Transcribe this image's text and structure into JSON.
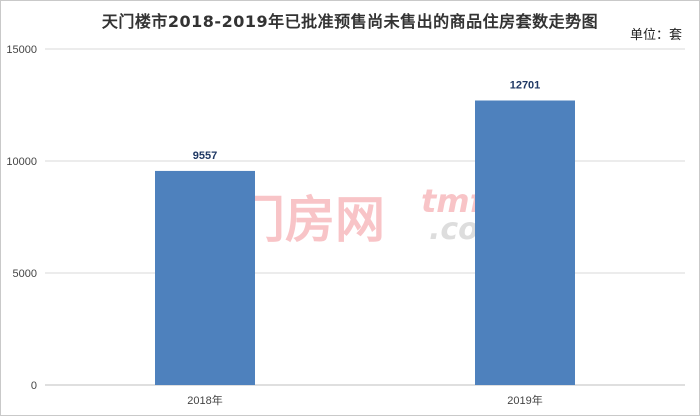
{
  "title": "天门楼市2018-2019年已批准预售尚未售出的商品住房套数走势图",
  "unit_label": "单位：套",
  "watermark": {
    "cn": "天门房网",
    "en": "tmfang",
    "com": ".com"
  },
  "colors": {
    "bar": "#4e81bd",
    "grid": "#d9d9d9",
    "data_label": "#1f3864"
  },
  "chart_data": {
    "type": "bar",
    "categories": [
      "2018年",
      "2019年"
    ],
    "values": [
      9557,
      12701
    ],
    "title": "天门楼市2018-2019年已批准预售尚未售出的商品住房套数走势图",
    "xlabel": "",
    "ylabel": "",
    "ylim": [
      0,
      15000
    ],
    "yticks": [
      0,
      5000,
      10000,
      15000
    ],
    "grid": true,
    "data_labels": true
  }
}
